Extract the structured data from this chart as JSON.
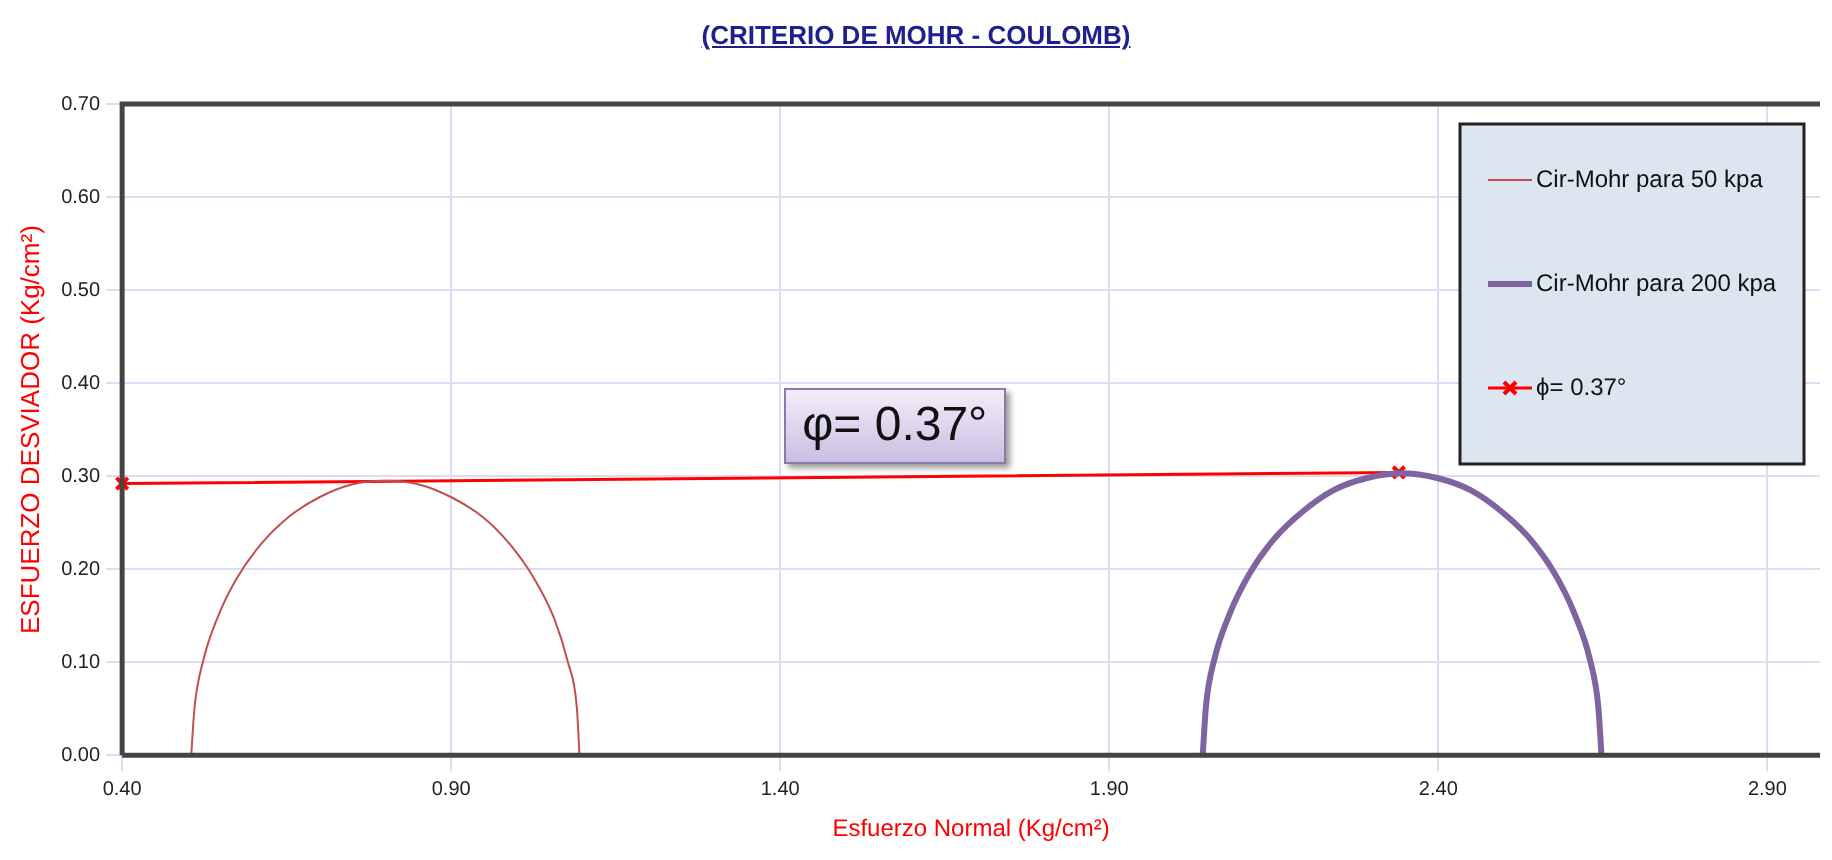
{
  "chart_data": {
    "type": "line",
    "title": "(CRITERIO DE MOHR - COULOMB)",
    "xlabel": "Esfuerzo Normal (Kg/cm²)",
    "ylabel": "ESFUERZO DESVIADOR (Kg/cm²)",
    "annotations": [
      {
        "text": "φ= 0.37°",
        "x": 1.4,
        "y": 0.3
      }
    ],
    "series": [
      {
        "name": "Cir-Mohr para 50 kpa",
        "color": "#c0504d",
        "marker": "none",
        "x": [
          0.505,
          0.51,
          0.523,
          0.545,
          0.574,
          0.61,
          0.653,
          0.699,
          0.749,
          0.8,
          0.851,
          0.901,
          0.948,
          0.99,
          1.026,
          1.056,
          1.077,
          1.091,
          1.095
        ],
        "values": [
          0,
          0.051,
          0.101,
          0.148,
          0.19,
          0.226,
          0.256,
          0.277,
          0.291,
          0.295,
          0.291,
          0.277,
          0.256,
          0.226,
          0.19,
          0.148,
          0.101,
          0.051,
          0
        ]
      },
      {
        "name": "Cir-Mohr para 200 kpa",
        "color": "#8064a2",
        "marker": "none",
        "x": [
          2.042,
          2.047,
          2.06,
          2.083,
          2.113,
          2.15,
          2.194,
          2.241,
          2.292,
          2.345,
          2.398,
          2.449,
          2.496,
          2.54,
          2.577,
          2.607,
          2.63,
          2.643,
          2.648
        ],
        "values": [
          0,
          0.053,
          0.104,
          0.152,
          0.195,
          0.232,
          0.262,
          0.285,
          0.298,
          0.303,
          0.298,
          0.285,
          0.262,
          0.232,
          0.195,
          0.152,
          0.104,
          0.053,
          0
        ]
      },
      {
        "name": "ϕ= 0.37°",
        "color": "#ff0000",
        "marker": "cross",
        "x": [
          0.4,
          2.34
        ],
        "values": [
          0.292,
          0.304
        ]
      }
    ],
    "xlim": [
      0.4,
      2.98
    ],
    "xticks": [
      {
        "value": 0.4,
        "label": "0.40"
      },
      {
        "value": 0.9,
        "label": "0.90"
      },
      {
        "value": 1.4,
        "label": "1.40"
      },
      {
        "value": 1.9,
        "label": "1.90"
      },
      {
        "value": 2.4,
        "label": "2.40"
      },
      {
        "value": 2.9,
        "label": "2.90"
      }
    ],
    "ylim": [
      0,
      0.7
    ],
    "yticks": [
      {
        "value": 0,
        "label": "0.00"
      },
      {
        "value": 0.1,
        "label": "0.10"
      },
      {
        "value": 0.2,
        "label": "0.20"
      },
      {
        "value": 0.3,
        "label": "0.30"
      },
      {
        "value": 0.4,
        "label": "0.40"
      },
      {
        "value": 0.5,
        "label": "0.50"
      },
      {
        "value": 0.6,
        "label": "0.60"
      },
      {
        "value": 0.7,
        "label": "0.70"
      }
    ],
    "grid": true,
    "legend": "top right"
  }
}
